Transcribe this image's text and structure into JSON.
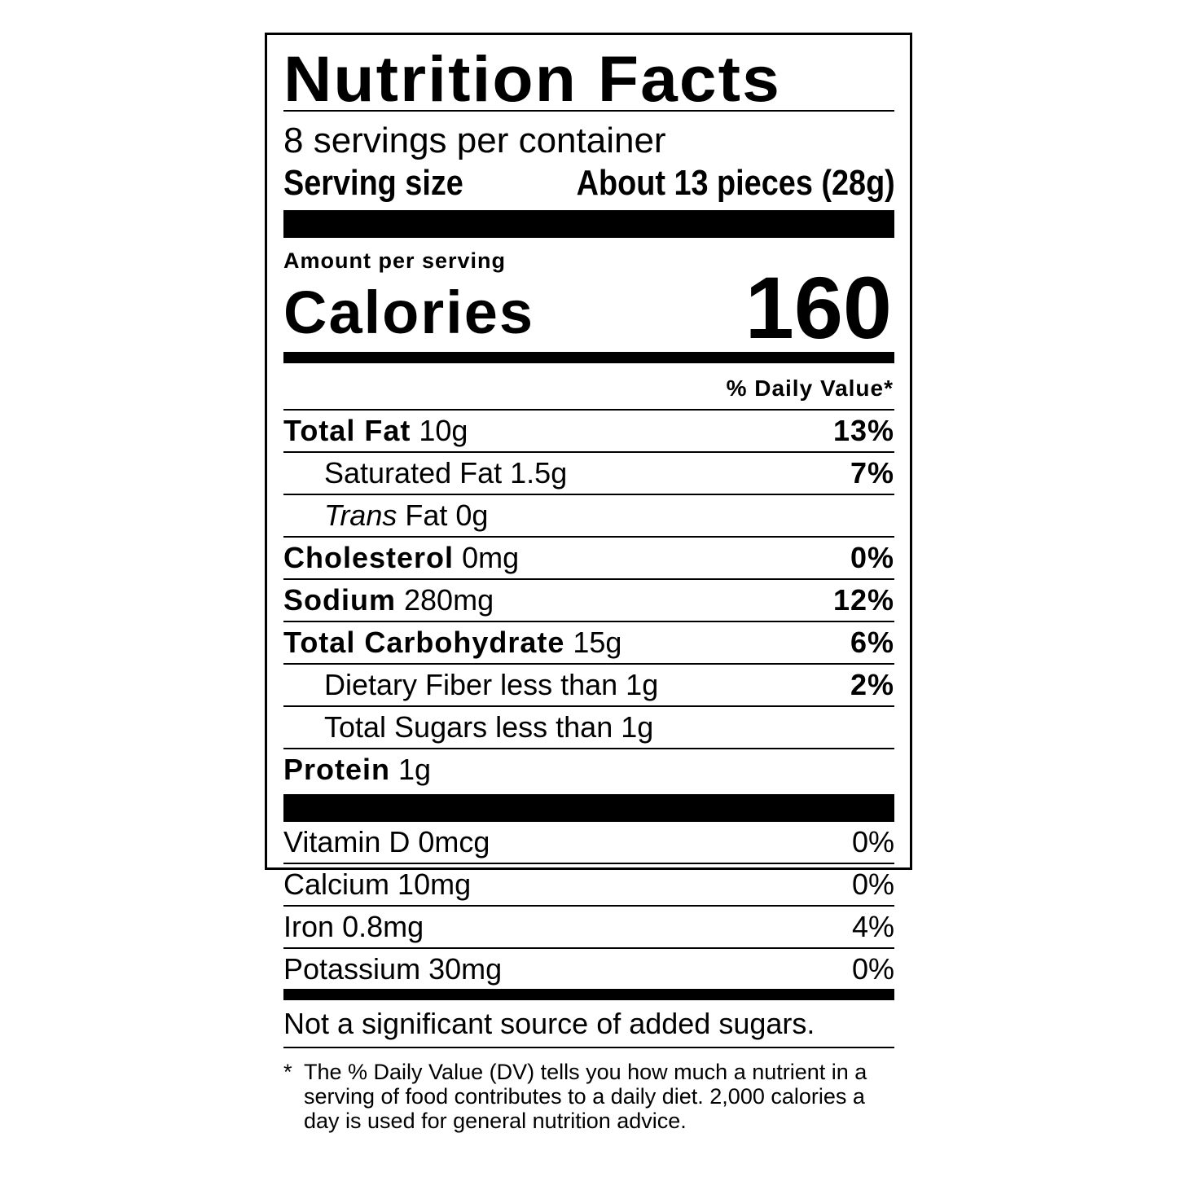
{
  "header": {
    "title": "Nutrition Facts",
    "servings": "8 servings per container",
    "serving_size_label": "Serving size",
    "serving_size_value": "About 13 pieces (28g)"
  },
  "calories": {
    "amount_per_serving": "Amount per serving",
    "label": "Calories",
    "value": "160"
  },
  "daily_value_heading": "% Daily Value*",
  "nutrients": [
    {
      "name": "Total Fat",
      "amount": "10g",
      "dv": "13%"
    },
    {
      "name": "Saturated Fat",
      "amount": "1.5g",
      "dv": "7%"
    },
    {
      "name_italic": "Trans",
      "name": "Fat",
      "amount": "0g"
    },
    {
      "name": "Cholesterol",
      "amount": "0mg",
      "dv": "0%"
    },
    {
      "name": "Sodium",
      "amount": "280mg",
      "dv": "12%"
    },
    {
      "name": "Total Carbohydrate",
      "amount": "15g",
      "dv": "6%"
    },
    {
      "name": "Dietary Fiber",
      "amount": "less than 1g",
      "dv": "2%"
    },
    {
      "name": "Total Sugars",
      "amount": "less than 1g"
    },
    {
      "name": "Protein",
      "amount": "1g"
    }
  ],
  "vitamins": [
    {
      "name": "Vitamin D",
      "amount": "0mcg",
      "dv": "0%"
    },
    {
      "name": "Calcium",
      "amount": "10mg",
      "dv": "0%"
    },
    {
      "name": "Iron",
      "amount": "0.8mg",
      "dv": "4%"
    },
    {
      "name": "Potassium",
      "amount": "30mg",
      "dv": "0%"
    }
  ],
  "added_sugars_note": "Not a significant source of added sugars.",
  "footnote": {
    "marker": "*",
    "text": "The % Daily Value (DV) tells you how much a nutrient in a serving of food contributes to a daily diet. 2,000 calories a day is used for general nutrition advice."
  }
}
